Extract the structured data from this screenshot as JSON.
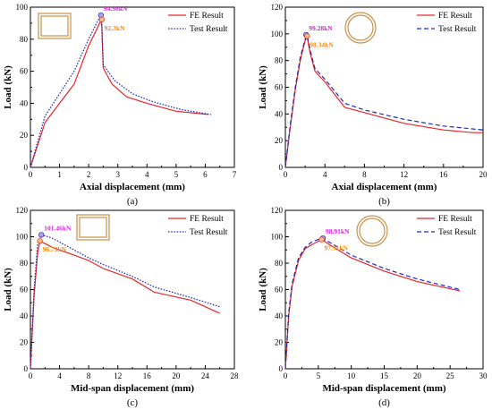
{
  "figure": {
    "colors": {
      "fe": "#e8262a",
      "test": "#1f2bb8",
      "peak_fe": "#f08c14",
      "peak_test": "#e020e0",
      "icon": "#c8914a",
      "axis": "#000000"
    }
  },
  "chart_data": [
    {
      "type": "line",
      "panel_label": "(a)",
      "xlabel": "Axial displacement (mm)",
      "ylabel": "Load (kN)",
      "xlim": [
        0,
        7
      ],
      "ylim": [
        0,
        100
      ],
      "xticks": [
        "0",
        "1",
        "2",
        "3",
        "4",
        "5",
        "6",
        "7"
      ],
      "yticks": [
        "0",
        "20",
        "40",
        "60",
        "80",
        "100"
      ],
      "section_icon": "rectangular-section-icon",
      "legend": [
        "FE Result",
        "Test Result"
      ],
      "series": [
        {
          "name": "FE Result",
          "style": "solid",
          "x": [
            0,
            0.5,
            1.0,
            1.5,
            2.0,
            2.3,
            2.42,
            2.45,
            2.5,
            2.8,
            3.3,
            4.0,
            5.0,
            6.1
          ],
          "y": [
            0,
            28,
            40,
            52,
            76,
            87,
            92,
            88,
            62,
            52,
            44,
            40,
            35,
            33
          ]
        },
        {
          "name": "Test Result",
          "style": "dotted",
          "x": [
            0,
            0.5,
            1.0,
            1.5,
            2.0,
            2.3,
            2.42,
            2.45,
            2.5,
            2.9,
            3.5,
            4.2,
            5.2,
            6.2
          ],
          "y": [
            0,
            32,
            46,
            60,
            80,
            91,
            95,
            90,
            64,
            54,
            46,
            41,
            36,
            33
          ]
        }
      ],
      "peaks": [
        {
          "series": "Test Result",
          "x": 2.42,
          "y": 94.98,
          "label": "94.98kN"
        },
        {
          "series": "FE Result",
          "x": 2.45,
          "y": 92.3,
          "label": "92.3kN"
        }
      ]
    },
    {
      "type": "line",
      "panel_label": "(b)",
      "xlabel": "Axial displacement (mm)",
      "ylabel": "Load (kN)",
      "xlim": [
        0,
        20
      ],
      "ylim": [
        0,
        120
      ],
      "xticks": [
        "0",
        "4",
        "8",
        "12",
        "16",
        "20"
      ],
      "yticks": [
        "0",
        "20",
        "40",
        "60",
        "80",
        "100",
        "120"
      ],
      "section_icon": "circular-section-icon",
      "legend": [
        "FE Result",
        "Test Result"
      ],
      "series": [
        {
          "name": "FE Result",
          "style": "solid",
          "x": [
            0,
            0.5,
            1.0,
            1.5,
            2.0,
            2.2,
            2.5,
            3.0,
            4.0,
            6.0,
            8.0,
            12.0,
            16.0,
            19.0,
            20.0
          ],
          "y": [
            0,
            30,
            58,
            80,
            95,
            98,
            86,
            72,
            64,
            45,
            41,
            33,
            28,
            26,
            26
          ]
        },
        {
          "name": "Test Result",
          "style": "dashed",
          "x": [
            0,
            0.5,
            1.0,
            1.5,
            2.0,
            2.2,
            2.5,
            3.0,
            4.0,
            6.0,
            8.0,
            12.0,
            16.0,
            20.0
          ],
          "y": [
            0,
            32,
            60,
            82,
            96,
            99,
            88,
            74,
            66,
            48,
            43,
            36,
            31,
            28
          ]
        }
      ],
      "peaks": [
        {
          "series": "Test Result",
          "x": 2.1,
          "y": 99.28,
          "label": "99.28kN"
        },
        {
          "series": "FE Result",
          "x": 2.2,
          "y": 98.34,
          "label": "98.34kN"
        }
      ]
    },
    {
      "type": "line",
      "panel_label": "(c)",
      "xlabel": "Mid-span displacement (mm)",
      "ylabel": "Load (kN)",
      "xlim": [
        0,
        28
      ],
      "ylim": [
        0,
        120
      ],
      "xticks": [
        "0",
        "4",
        "8",
        "12",
        "16",
        "20",
        "24",
        "28"
      ],
      "yticks": [
        "0",
        "20",
        "40",
        "60",
        "80",
        "100",
        "120"
      ],
      "section_icon": "rectangular-section-icon",
      "legend": [
        "FE Result",
        "Test Result"
      ],
      "series": [
        {
          "name": "FE Result",
          "style": "solid",
          "x": [
            0,
            0.5,
            1.0,
            1.3,
            3.0,
            6.0,
            8.0,
            10.0,
            14.0,
            17.0,
            22.0,
            26.0
          ],
          "y": [
            0,
            55,
            88,
            96.79,
            92,
            86,
            82,
            76,
            68,
            58,
            52,
            42
          ]
        },
        {
          "name": "Test Result",
          "style": "dotted",
          "x": [
            0,
            0.5,
            1.0,
            1.5,
            3.0,
            6.0,
            8.0,
            10.0,
            14.0,
            17.0,
            22.0,
            26.0
          ],
          "y": [
            0,
            60,
            95,
            101.46,
            99,
            90,
            84,
            79,
            70,
            62,
            54,
            47
          ]
        }
      ],
      "peaks": [
        {
          "series": "Test Result",
          "x": 1.5,
          "y": 101.46,
          "label": "101.46kN"
        },
        {
          "series": "FE Result",
          "x": 1.3,
          "y": 96.79,
          "label": "96.79kN"
        }
      ]
    },
    {
      "type": "line",
      "panel_label": "(d)",
      "xlabel": "Mid-span displacement (mm)",
      "ylabel": "Load (kN)",
      "xlim": [
        0,
        30
      ],
      "ylim": [
        0,
        120
      ],
      "xticks": [
        "0",
        "5",
        "10",
        "15",
        "20",
        "25",
        "30"
      ],
      "yticks": [
        "0",
        "20",
        "40",
        "60",
        "80",
        "100",
        "120"
      ],
      "section_icon": "circular-section-icon",
      "legend": [
        "FE Result",
        "Test Result"
      ],
      "series": [
        {
          "name": "FE Result",
          "style": "solid",
          "x": [
            0,
            0.5,
            1.0,
            2.0,
            3.0,
            4.0,
            5.5,
            7.0,
            10.0,
            15.0,
            20.0,
            26.5
          ],
          "y": [
            0,
            40,
            62,
            82,
            91,
            94,
            97.91,
            93,
            84,
            74,
            66,
            59
          ]
        },
        {
          "name": "Test Result",
          "style": "dashed",
          "x": [
            0,
            0.5,
            1.0,
            2.0,
            3.0,
            4.0,
            5.5,
            7.0,
            10.0,
            15.0,
            20.0,
            26.5
          ],
          "y": [
            0,
            42,
            64,
            84,
            92,
            96,
            98.91,
            95,
            86,
            76,
            68,
            60
          ]
        }
      ],
      "peaks": [
        {
          "series": "Test Result",
          "x": 5.7,
          "y": 98.91,
          "label": "98.91kN"
        },
        {
          "series": "FE Result",
          "x": 5.5,
          "y": 97.91,
          "label": "97.91kN"
        }
      ]
    }
  ]
}
